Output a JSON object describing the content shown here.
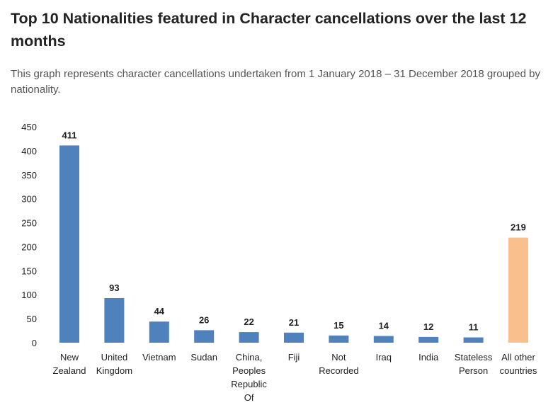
{
  "header": {
    "title": "Top 10 Nationalities featured in Character cancellations over the last 12 months",
    "subtitle": "This graph represents character cancellations undertaken from 1 January 2018 – 31 December 2018 grouped by nationality."
  },
  "chart_data": {
    "type": "bar",
    "title": "",
    "xlabel": "",
    "ylabel": "",
    "ylim": [
      0,
      450
    ],
    "yticks": [
      0,
      50,
      100,
      150,
      200,
      250,
      300,
      350,
      400,
      450
    ],
    "grid": false,
    "legend": "none",
    "categories": [
      [
        "New",
        "Zealand"
      ],
      [
        "United",
        "Kingdom"
      ],
      [
        "Vietnam"
      ],
      [
        "Sudan"
      ],
      [
        "China,",
        "Peoples",
        "Republic",
        "Of"
      ],
      [
        "Fiji"
      ],
      [
        "Not",
        "Recorded"
      ],
      [
        "Iraq"
      ],
      [
        "India"
      ],
      [
        "Stateless",
        "Person"
      ],
      [
        "All other",
        "countries"
      ]
    ],
    "values": [
      411,
      93,
      44,
      26,
      22,
      21,
      15,
      14,
      12,
      11,
      219
    ],
    "colors": [
      "#4f81bd",
      "#4f81bd",
      "#4f81bd",
      "#4f81bd",
      "#4f81bd",
      "#4f81bd",
      "#4f81bd",
      "#4f81bd",
      "#4f81bd",
      "#4f81bd",
      "#f9c08e"
    ],
    "data_labels": true
  }
}
